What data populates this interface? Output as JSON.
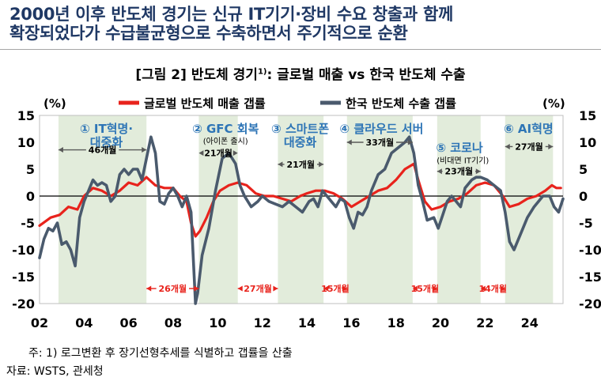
{
  "headline": {
    "line1": "2000년 이후 반도체 경기는 신규 IT기기·장비 수요 창출과 함께",
    "line2": "확장되었다가 수급불균형으로 수축하면서 주기적으로 순환"
  },
  "figure": {
    "title": "[그림 2] 반도체 경기",
    "title_sup": "1)",
    "title_rest": ": 글로벌 매출 vs 한국 반도체 수출"
  },
  "footer": {
    "note": "주: 1) 로그변환 후 장기선형추세를 식별하고 갭률을 산출",
    "source": "자료: WSTS, 관세청"
  },
  "colors": {
    "global": "#e8231c",
    "korea": "#4a5a6d",
    "shade": "#e2ecdb",
    "cyan": "#2e75b6",
    "arrow_red": "#e8231c",
    "arrow_gray": "#595959"
  },
  "chart_data": {
    "type": "line",
    "unit_left": "(%)",
    "unit_right": "(%)",
    "ylim": [
      -20,
      15
    ],
    "yticks": [
      "15",
      "10",
      "5",
      "0",
      "-5",
      "-10",
      "-15",
      "-20"
    ],
    "xlim": [
      2002,
      2025.5
    ],
    "xticks": [
      "02",
      "04",
      "06",
      "08",
      "10",
      "12",
      "14",
      "16",
      "18",
      "20",
      "22",
      "24"
    ],
    "legend": [
      "글로벌 반도체 매출 갭률",
      "한국 반도체 수출 갭률"
    ],
    "series": [
      {
        "name": "글로벌 반도체 매출 갭률",
        "color": "#e8231c",
        "points": [
          [
            2002.0,
            -5.5
          ],
          [
            2002.5,
            -4
          ],
          [
            2002.9,
            -3.5
          ],
          [
            2003.3,
            -2
          ],
          [
            2003.7,
            -2.5
          ],
          [
            2004.0,
            0
          ],
          [
            2004.4,
            1.5
          ],
          [
            2004.8,
            1
          ],
          [
            2005.2,
            0
          ],
          [
            2005.6,
            1
          ],
          [
            2006.0,
            2.5
          ],
          [
            2006.4,
            2
          ],
          [
            2006.8,
            3.5
          ],
          [
            2007.2,
            2
          ],
          [
            2007.6,
            1.5
          ],
          [
            2008.0,
            1.5
          ],
          [
            2008.3,
            0
          ],
          [
            2008.6,
            -1
          ],
          [
            2008.8,
            -5
          ],
          [
            2009.0,
            -7.5
          ],
          [
            2009.2,
            -6.5
          ],
          [
            2009.5,
            -4
          ],
          [
            2009.8,
            -1
          ],
          [
            2010.1,
            1
          ],
          [
            2010.5,
            2
          ],
          [
            2010.9,
            2.5
          ],
          [
            2011.3,
            2
          ],
          [
            2011.7,
            0.5
          ],
          [
            2012.1,
            0
          ],
          [
            2012.5,
            0
          ],
          [
            2012.9,
            -0.5
          ],
          [
            2013.3,
            -1
          ],
          [
            2013.7,
            0
          ],
          [
            2014.0,
            0.5
          ],
          [
            2014.4,
            1
          ],
          [
            2014.8,
            1
          ],
          [
            2015.2,
            0.5
          ],
          [
            2015.6,
            -0.5
          ],
          [
            2016.0,
            -2
          ],
          [
            2016.4,
            -1
          ],
          [
            2016.8,
            0
          ],
          [
            2017.2,
            1
          ],
          [
            2017.6,
            1.5
          ],
          [
            2018.0,
            3
          ],
          [
            2018.4,
            5
          ],
          [
            2018.8,
            6
          ],
          [
            2019.0,
            3
          ],
          [
            2019.3,
            -1
          ],
          [
            2019.6,
            -2.5
          ],
          [
            2020.0,
            -2
          ],
          [
            2020.4,
            -1
          ],
          [
            2020.8,
            -0.5
          ],
          [
            2021.2,
            0.5
          ],
          [
            2021.6,
            2
          ],
          [
            2022.0,
            2.5
          ],
          [
            2022.4,
            2
          ],
          [
            2022.8,
            0
          ],
          [
            2023.1,
            -2
          ],
          [
            2023.5,
            -1.5
          ],
          [
            2023.9,
            -0.5
          ],
          [
            2024.3,
            0
          ],
          [
            2024.7,
            1
          ],
          [
            2025.0,
            2
          ],
          [
            2025.2,
            1.5
          ],
          [
            2025.4,
            1.5
          ]
        ]
      },
      {
        "name": "한국 반도체 수출 갭률",
        "color": "#4a5a6d",
        "points": [
          [
            2002.0,
            -11.5
          ],
          [
            2002.2,
            -8
          ],
          [
            2002.4,
            -6
          ],
          [
            2002.6,
            -6.5
          ],
          [
            2002.8,
            -5
          ],
          [
            2003.0,
            -9
          ],
          [
            2003.2,
            -8.5
          ],
          [
            2003.4,
            -10
          ],
          [
            2003.6,
            -13
          ],
          [
            2003.8,
            -4
          ],
          [
            2004.0,
            -1
          ],
          [
            2004.2,
            1
          ],
          [
            2004.4,
            3
          ],
          [
            2004.6,
            2
          ],
          [
            2004.8,
            2.5
          ],
          [
            2005.0,
            2
          ],
          [
            2005.2,
            -1
          ],
          [
            2005.4,
            0
          ],
          [
            2005.6,
            4
          ],
          [
            2005.8,
            5
          ],
          [
            2006.0,
            4
          ],
          [
            2006.2,
            5
          ],
          [
            2006.4,
            5
          ],
          [
            2006.6,
            3
          ],
          [
            2006.8,
            7
          ],
          [
            2007.0,
            11
          ],
          [
            2007.2,
            8
          ],
          [
            2007.4,
            -1
          ],
          [
            2007.6,
            -1.5
          ],
          [
            2007.8,
            0.5
          ],
          [
            2008.0,
            1.5
          ],
          [
            2008.2,
            0
          ],
          [
            2008.4,
            -2
          ],
          [
            2008.6,
            0
          ],
          [
            2008.8,
            -3
          ],
          [
            2009.0,
            -20
          ],
          [
            2009.1,
            -18
          ],
          [
            2009.3,
            -11
          ],
          [
            2009.6,
            -6
          ],
          [
            2009.9,
            1
          ],
          [
            2010.2,
            7
          ],
          [
            2010.5,
            8
          ],
          [
            2010.8,
            6
          ],
          [
            2011.0,
            2
          ],
          [
            2011.2,
            0
          ],
          [
            2011.5,
            -2
          ],
          [
            2011.8,
            -1
          ],
          [
            2012.0,
            0
          ],
          [
            2012.3,
            -1
          ],
          [
            2012.6,
            -1.5
          ],
          [
            2012.9,
            -2
          ],
          [
            2013.2,
            -1
          ],
          [
            2013.5,
            -2
          ],
          [
            2013.8,
            -3
          ],
          [
            2014.1,
            -1
          ],
          [
            2014.3,
            -0.5
          ],
          [
            2014.5,
            -2
          ],
          [
            2014.7,
            1
          ],
          [
            2014.9,
            0
          ],
          [
            2015.1,
            -1
          ],
          [
            2015.3,
            -2
          ],
          [
            2015.5,
            -0.5
          ],
          [
            2015.7,
            -1
          ],
          [
            2015.9,
            -4
          ],
          [
            2016.1,
            -6
          ],
          [
            2016.3,
            -3
          ],
          [
            2016.5,
            -3.5
          ],
          [
            2016.7,
            -2
          ],
          [
            2016.9,
            1
          ],
          [
            2017.2,
            4
          ],
          [
            2017.5,
            5
          ],
          [
            2017.8,
            8
          ],
          [
            2018.1,
            9
          ],
          [
            2018.4,
            10
          ],
          [
            2018.6,
            11
          ],
          [
            2018.8,
            8
          ],
          [
            2019.0,
            2
          ],
          [
            2019.2,
            -1
          ],
          [
            2019.4,
            -4.5
          ],
          [
            2019.7,
            -4
          ],
          [
            2019.9,
            -6
          ],
          [
            2020.1,
            -3.5
          ],
          [
            2020.3,
            -1
          ],
          [
            2020.5,
            0
          ],
          [
            2020.7,
            -1
          ],
          [
            2020.9,
            -2
          ],
          [
            2021.1,
            1.5
          ],
          [
            2021.4,
            3
          ],
          [
            2021.6,
            3.5
          ],
          [
            2021.8,
            3.5
          ],
          [
            2022.1,
            3
          ],
          [
            2022.4,
            2
          ],
          [
            2022.7,
            1
          ],
          [
            2022.9,
            -3
          ],
          [
            2023.1,
            -8.5
          ],
          [
            2023.3,
            -10
          ],
          [
            2023.6,
            -7
          ],
          [
            2023.9,
            -4
          ],
          [
            2024.2,
            -2
          ],
          [
            2024.6,
            0
          ],
          [
            2024.9,
            0
          ],
          [
            2025.1,
            -2
          ],
          [
            2025.3,
            -3
          ],
          [
            2025.5,
            -0.5
          ]
        ]
      }
    ],
    "shaded_periods": [
      [
        2002.85,
        2006.8
      ],
      [
        2009.15,
        2010.9
      ],
      [
        2012.7,
        2014.75
      ],
      [
        2015.8,
        2018.75
      ],
      [
        2019.85,
        2021.8
      ],
      [
        2022.9,
        2025.05
      ]
    ],
    "annotations": [
      {
        "lines": [
          "① IT혁명·",
          "대중화"
        ],
        "x": 2005.0,
        "y": 12.8,
        "style": "cyan"
      },
      {
        "lines": [
          "② GFC 회복"
        ],
        "x": 2010.35,
        "y": 12.8,
        "style": "cyan"
      },
      {
        "lines": [
          "(아이폰 출시)"
        ],
        "x": 2010.35,
        "y": 10.3,
        "style": "small"
      },
      {
        "lines": [
          "③ 스마트폰",
          "대중화"
        ],
        "x": 2013.7,
        "y": 12.8,
        "style": "cyan"
      },
      {
        "lines": [
          "④ 클라우드 서버"
        ],
        "x": 2017.35,
        "y": 12.8,
        "style": "cyan"
      },
      {
        "lines": [
          "⑤ 코로나"
        ],
        "x": 2020.85,
        "y": 9.3,
        "style": "cyan"
      },
      {
        "lines": [
          "(비대면 IT기기)"
        ],
        "x": 2021.0,
        "y": 6.7,
        "style": "small"
      },
      {
        "lines": [
          "⑥ AI혁명"
        ],
        "x": 2023.95,
        "y": 12.8,
        "style": "cyan"
      }
    ],
    "durations": [
      {
        "label": "46개월",
        "x1": 2002.85,
        "x2": 2006.8,
        "y": 8.6,
        "color": "gray"
      },
      {
        "label": "21개월",
        "x1": 2009.15,
        "x2": 2010.9,
        "y": 8.0,
        "color": "gray"
      },
      {
        "label": "21개월",
        "x1": 2012.7,
        "x2": 2014.75,
        "y": 5.9,
        "color": "gray"
      },
      {
        "label": "33개월",
        "x1": 2015.8,
        "x2": 2018.75,
        "y": 10.0,
        "color": "gray"
      },
      {
        "label": "23개월",
        "x1": 2019.85,
        "x2": 2021.8,
        "y": 4.6,
        "color": "gray"
      },
      {
        "label": "27개월",
        "x1": 2022.9,
        "x2": 2025.05,
        "y": 9.2,
        "color": "gray"
      },
      {
        "label": "26개월",
        "x1": 2006.8,
        "x2": 2009.15,
        "y": -17.2,
        "color": "red"
      },
      {
        "label": "27개월",
        "x1": 2010.9,
        "x2": 2012.7,
        "y": -17.2,
        "color": "red"
      },
      {
        "label": "15개월",
        "x1": 2014.75,
        "x2": 2015.8,
        "y": -17.2,
        "color": "red"
      },
      {
        "label": "15개월",
        "x1": 2018.75,
        "x2": 2019.85,
        "y": -17.2,
        "color": "red"
      },
      {
        "label": "14개월",
        "x1": 2021.8,
        "x2": 2022.9,
        "y": -17.2,
        "color": "red"
      }
    ]
  }
}
